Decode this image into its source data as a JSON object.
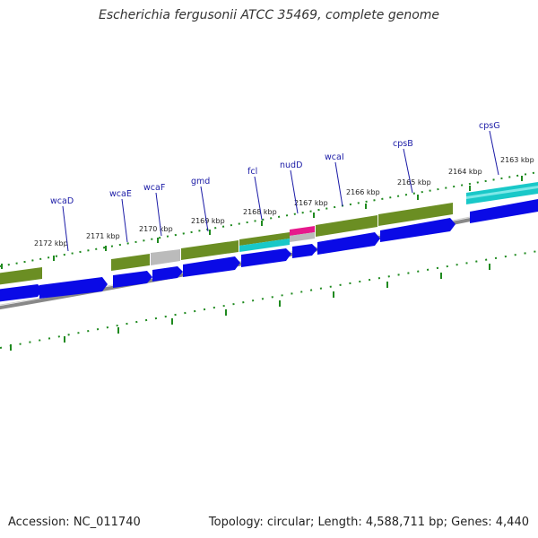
{
  "title": "Escherichia fergusonii ATCC 35469, complete genome",
  "accession": "Accession: NC_011740",
  "topology": "Topology: circular; Length: 4,588,711 bp; Genes: 4,440",
  "colors": {
    "cds": "#0a0ae6",
    "gene": "#6b8e23",
    "pseudo": "#bbbbbb",
    "misc": "#19c8c8",
    "highlight": "#e6198c",
    "ticks": "#1f8a1f",
    "backbone": "#888888"
  },
  "genes": [
    {
      "name": "wcaD"
    },
    {
      "name": "wcaE"
    },
    {
      "name": "wcaF"
    },
    {
      "name": "gmd"
    },
    {
      "name": "fcl"
    },
    {
      "name": "nudD"
    },
    {
      "name": "wcaI"
    },
    {
      "name": "cpsB"
    },
    {
      "name": "cpsG"
    }
  ],
  "scale": [
    {
      "label": "2172 kbp"
    },
    {
      "label": "2171 kbp"
    },
    {
      "label": "2170 kbp"
    },
    {
      "label": "2169 kbp"
    },
    {
      "label": "2168 kbp"
    },
    {
      "label": "2167 kbp"
    },
    {
      "label": "2166 kbp"
    },
    {
      "label": "2165 kbp"
    },
    {
      "label": "2164 kbp"
    },
    {
      "label": "2163 kbp"
    }
  ]
}
